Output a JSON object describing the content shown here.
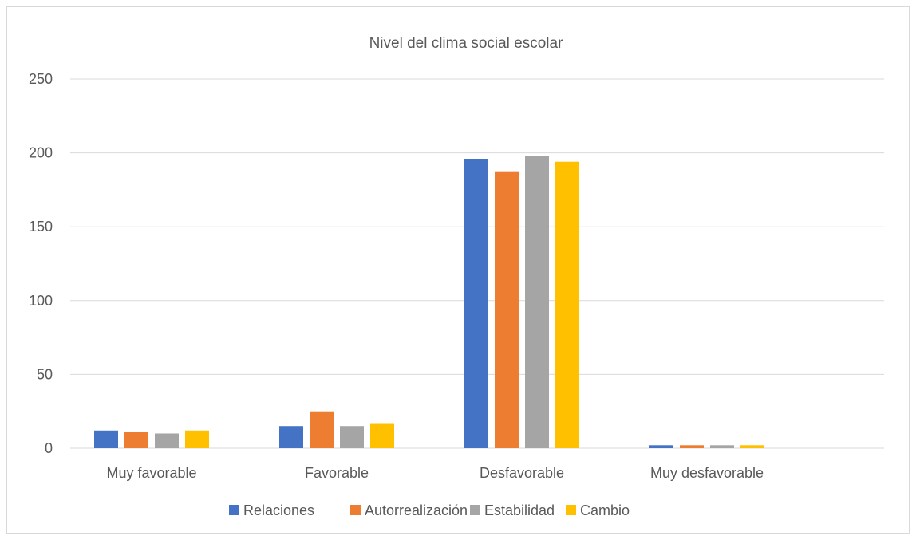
{
  "chart_data": {
    "type": "bar",
    "title": "Nivel del clima social escolar",
    "xlabel": "",
    "ylabel": "",
    "categories": [
      "Muy favorable",
      "Favorable",
      "Desfavorable",
      "Muy desfavorable"
    ],
    "series": [
      {
        "name": "Relaciones",
        "color": "#4472c4",
        "values": [
          12,
          15,
          196,
          2
        ]
      },
      {
        "name": "Autorrealización",
        "color": "#ed7d31",
        "values": [
          11,
          25,
          187,
          2
        ]
      },
      {
        "name": "Estabilidad",
        "color": "#a5a5a5",
        "values": [
          10,
          15,
          198,
          2
        ]
      },
      {
        "name": "Cambio",
        "color": "#ffc000",
        "values": [
          12,
          17,
          194,
          2
        ]
      }
    ],
    "ylim": [
      0,
      250
    ],
    "yticks": [
      0,
      50,
      100,
      150,
      200,
      250
    ],
    "grid": true,
    "legend": "bottom"
  }
}
